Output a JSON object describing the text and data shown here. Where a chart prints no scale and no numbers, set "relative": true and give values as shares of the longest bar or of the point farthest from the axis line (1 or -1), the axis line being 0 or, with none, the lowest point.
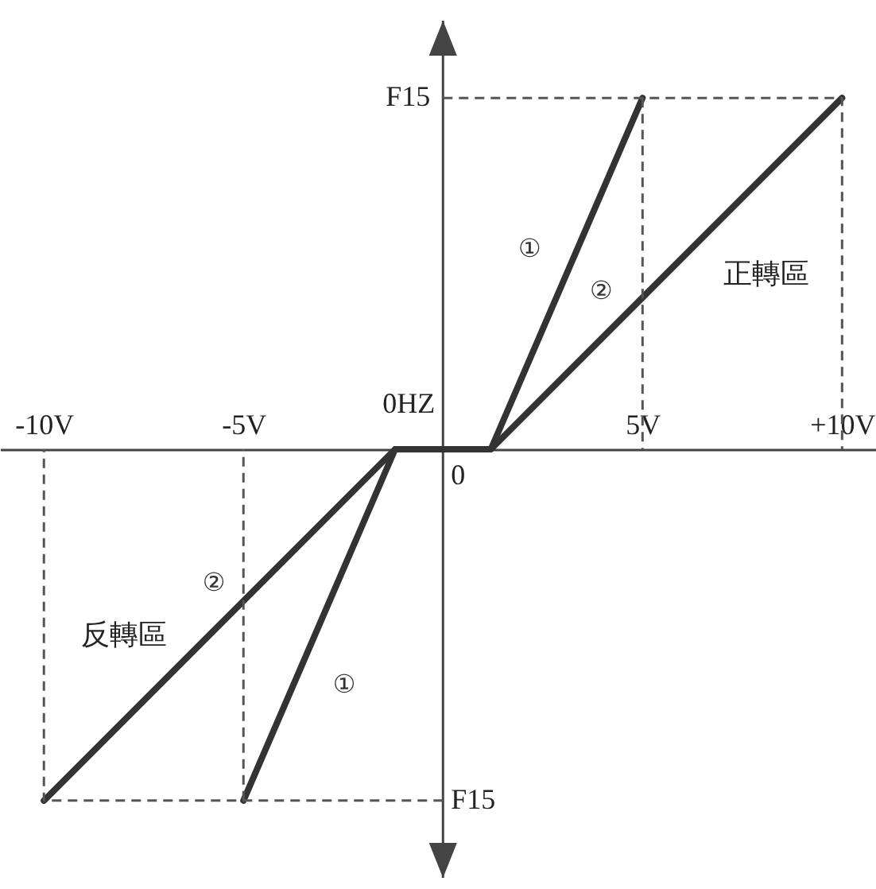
{
  "chart_data": {
    "type": "line",
    "relative": true,
    "xlim": [
      -11.1,
      10.85
    ],
    "xticks": [
      {
        "value": -10,
        "label": "-10V"
      },
      {
        "value": -5,
        "label": "-5V"
      },
      {
        "value": 5,
        "label": "5V"
      },
      {
        "value": 10,
        "label": "+10V"
      }
    ],
    "series": [
      {
        "name": "①",
        "color": "#333333",
        "x": [
          -5,
          -1.2,
          1.2,
          5
        ],
        "values": [
          -1,
          0,
          0,
          1
        ]
      },
      {
        "name": "②",
        "color": "#333333",
        "x": [
          -10,
          -1.2,
          1.2,
          10
        ],
        "values": [
          -1,
          0,
          0,
          1
        ]
      },
      {
        "color": "#555555",
        "line_style": "dashed",
        "x": [
          0,
          10,
          10
        ],
        "values": [
          1,
          1,
          0
        ]
      },
      {
        "color": "#555555",
        "line_style": "dashed",
        "x": [
          5,
          5
        ],
        "values": [
          1,
          0
        ]
      },
      {
        "color": "#555555",
        "line_style": "dashed",
        "x": [
          0,
          -10,
          -10
        ],
        "values": [
          -1,
          -1,
          0
        ]
      },
      {
        "color": "#555555",
        "line_style": "dashed",
        "x": [
          -5,
          -5
        ],
        "values": [
          -1,
          0
        ]
      }
    ],
    "ref_lines": [
      {
        "axis": "x",
        "value": 0,
        "color": "#444444"
      }
    ],
    "annotations": [
      "F15",
      "正轉區",
      {
        "text": "0HZ",
        "y": 0
      },
      {
        "text": "0",
        "x": 0
      },
      "反轉區",
      "F15"
    ]
  }
}
